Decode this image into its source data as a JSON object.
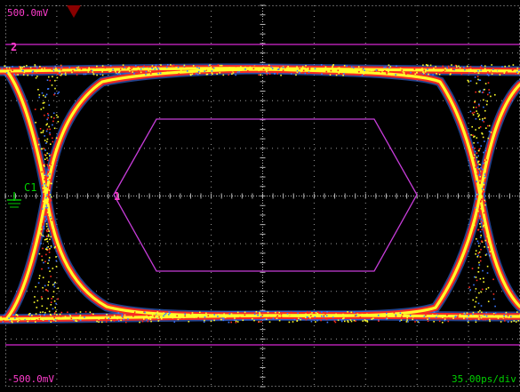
{
  "scope": {
    "top_scale": "500.0mV",
    "bottom_scale": "-500.0mV",
    "time_scale": "35.00ps/div",
    "marker_upper": "2",
    "marker_mask": "1",
    "channel": "C1"
  },
  "colors": {
    "background": "#000000",
    "graticule": "#b8b8b8",
    "limit_lines": "#d627d1",
    "mask": "#c63cd8",
    "trigger_marker": "#8a0000",
    "ground_marker": "#00cc00",
    "eye_core": "#ffff2a",
    "eye_mid": "#ff2a1e",
    "eye_edge": "#3c78ff"
  },
  "display": {
    "divisions_x": 10,
    "divisions_y": 8,
    "grid": "dotted"
  }
}
